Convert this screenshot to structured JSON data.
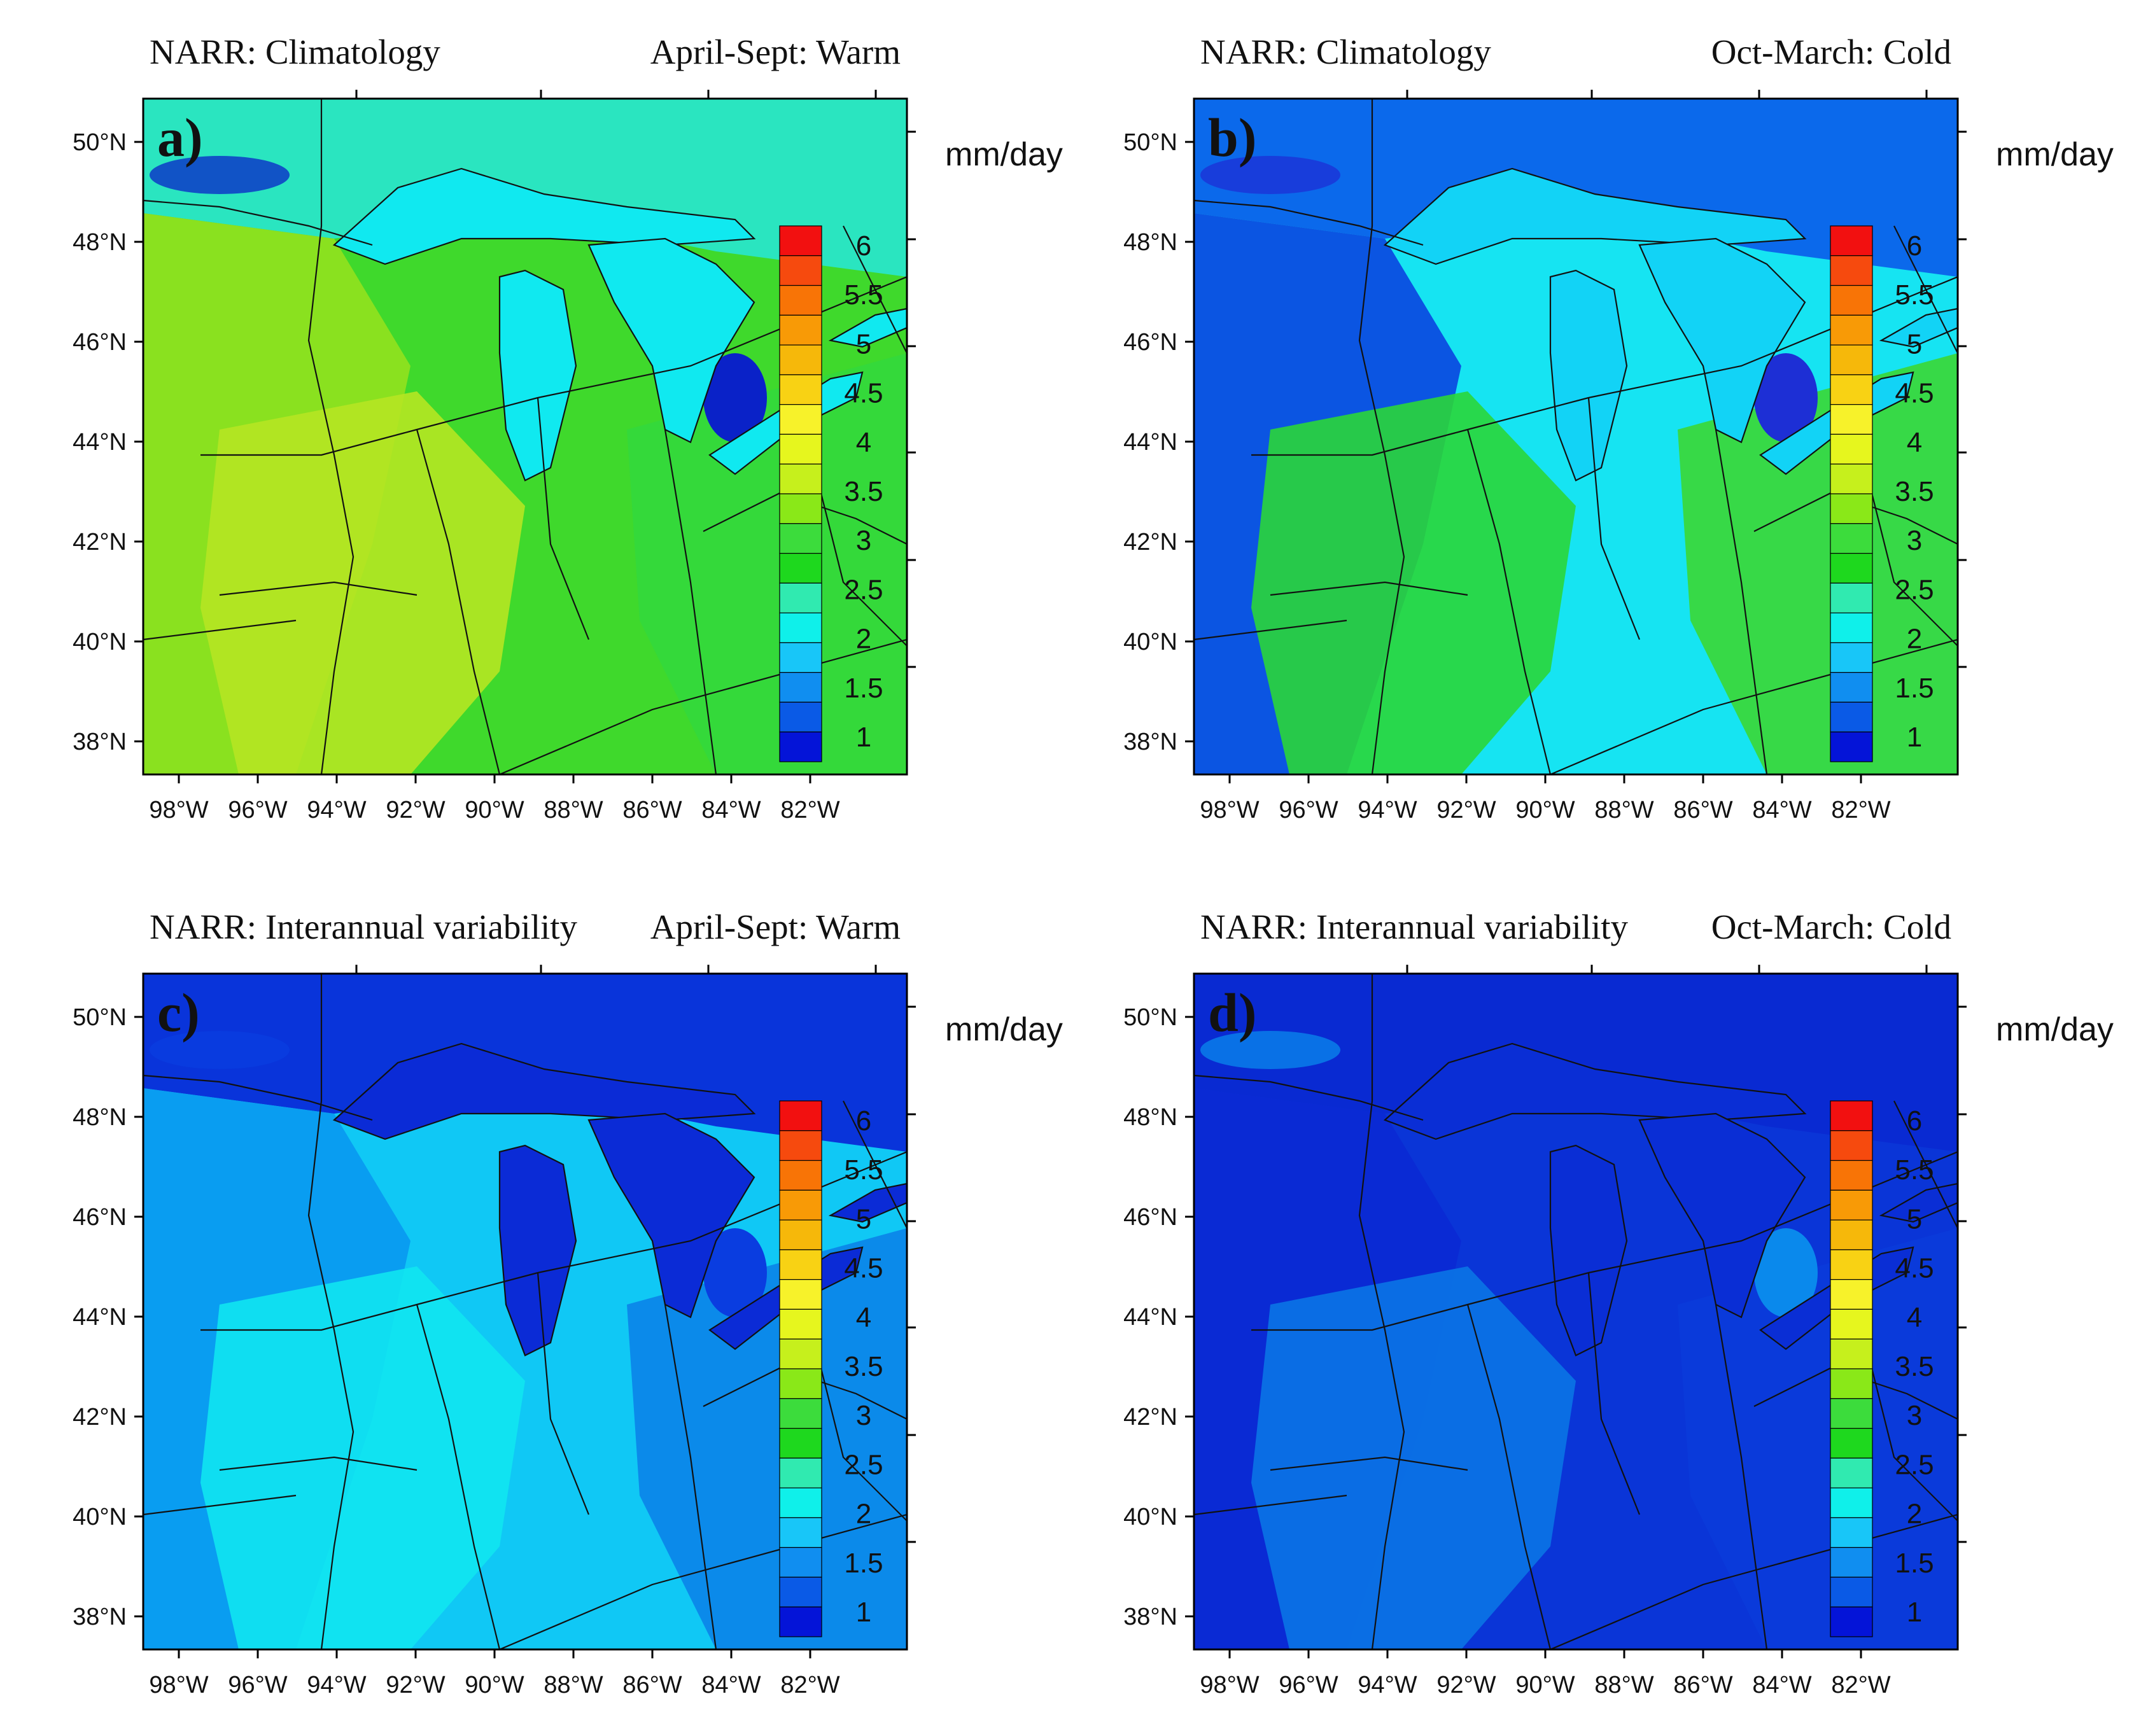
{
  "units": "mm/day",
  "colorbar": {
    "labels": [
      "1",
      "1.5",
      "2",
      "2.5",
      "3",
      "3.5",
      "4",
      "4.5",
      "5",
      "5.5",
      "6"
    ],
    "colors": [
      "#0414d8",
      "#0a5ae6",
      "#108ef0",
      "#18c6f8",
      "#0ff0ea",
      "#30eab0",
      "#1ed81e",
      "#3cdc3c",
      "#8ae818",
      "#c6f01c",
      "#e6f61e",
      "#f7f22a",
      "#f8d214",
      "#f6b80a",
      "#f89a06",
      "#f87406",
      "#f64a0e",
      "#f21010"
    ]
  },
  "lat_labels": [
    "50°N",
    "48°N",
    "46°N",
    "44°N",
    "42°N",
    "40°N",
    "38°N"
  ],
  "lon_labels": [
    "98°W",
    "96°W",
    "94°W",
    "92°W",
    "90°W",
    "88°W",
    "86°W",
    "84°W",
    "82°W"
  ],
  "panels": [
    {
      "label": "a)",
      "left_title": "NARR: Climatology",
      "right_title": "April-Sept: Warm",
      "field_color": "#3fd92c",
      "lake_color": "#10e9f0",
      "north_color": "#29e6c8",
      "west_color": "#8ee21f",
      "southwest_color": "#b5e622",
      "east_color": "#33d83c",
      "highlight_color": "#0a22c8"
    },
    {
      "label": "b)",
      "left_title": "NARR: Climatology",
      "right_title": "Oct-March: Cold",
      "field_color": "#16e4f2",
      "lake_color": "#12d3f6",
      "north_color": "#0b62ea",
      "west_color": "#0b4de0",
      "southwest_color": "#2ad63a",
      "east_color": "#3bd734",
      "highlight_color": "#1d2fd5"
    },
    {
      "label": "c)",
      "left_title": "NARR: Interannual variability",
      "right_title": "April-Sept: Warm",
      "field_color": "#10c8f5",
      "lake_color": "#0b2bd6",
      "north_color": "#0a2cd8",
      "west_color": "#0a9bf0",
      "southwest_color": "#11e5f1",
      "east_color": "#0b83e9",
      "highlight_color": "#0a3de0"
    },
    {
      "label": "d)",
      "left_title": "NARR: Interannual variability",
      "right_title": "Oct-March: Cold",
      "field_color": "#0a35d7",
      "lake_color": "#0a2ed5",
      "north_color": "#0a2ad2",
      "west_color": "#0b2ad4",
      "southwest_color": "#0a74e6",
      "east_color": "#0a3bda",
      "highlight_color": "#0a89ec"
    }
  ]
}
